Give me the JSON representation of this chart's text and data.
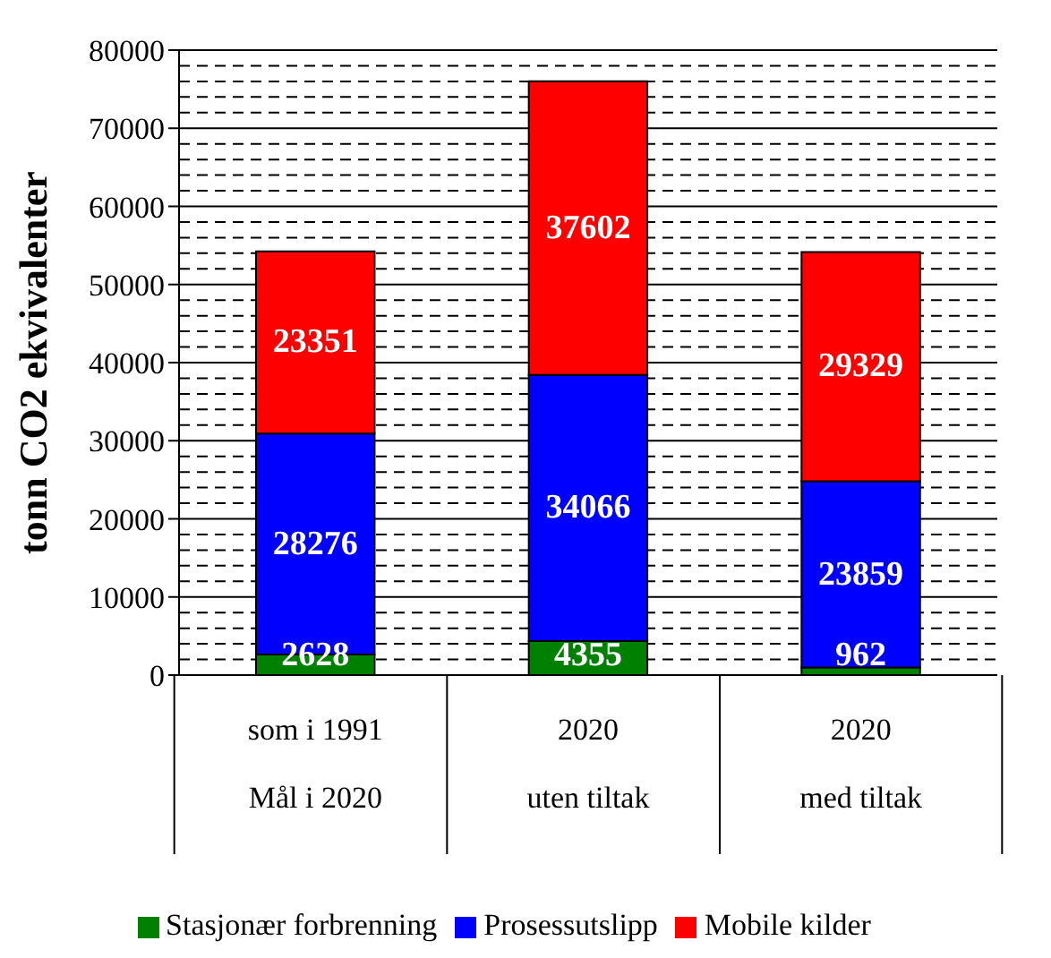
{
  "chart_data": {
    "type": "bar",
    "stacked": true,
    "ylabel": "tonn CO2 ekvivalenter",
    "categories": [
      "som i 1991\nMål i 2020",
      "2020\nuten tiltak",
      "2020\nmed tiltak"
    ],
    "series": [
      {
        "name": "Stasjonær forbrenning",
        "color": "#008000",
        "values": [
          2628,
          4355,
          962
        ]
      },
      {
        "name": "Prosessutslipp",
        "color": "#0000ff",
        "values": [
          28276,
          34066,
          23859
        ]
      },
      {
        "name": "Mobile kilder",
        "color": "#ff0000",
        "values": [
          23351,
          37602,
          29329
        ]
      }
    ],
    "ylim": [
      0,
      80000
    ],
    "yticks": [
      0,
      {
        "value": 2000,
        "label": null
      },
      {
        "value": 4000,
        "label": null
      },
      {
        "value": 6000,
        "label": null
      },
      {
        "value": 8000,
        "label": null
      },
      10000,
      {
        "value": 12000,
        "label": null
      },
      {
        "value": 14000,
        "label": null
      },
      {
        "value": 16000,
        "label": null
      },
      {
        "value": 18000,
        "label": null
      },
      20000,
      {
        "value": 22000,
        "label": null
      },
      {
        "value": 24000,
        "label": null
      },
      {
        "value": 26000,
        "label": null
      },
      {
        "value": 28000,
        "label": null
      },
      30000,
      {
        "value": 32000,
        "label": null
      },
      {
        "value": 34000,
        "label": null
      },
      {
        "value": 36000,
        "label": null
      },
      {
        "value": 38000,
        "label": null
      },
      40000,
      {
        "value": 42000,
        "label": null
      },
      {
        "value": 44000,
        "label": null
      },
      {
        "value": 46000,
        "label": null
      },
      {
        "value": 48000,
        "label": null
      },
      50000,
      {
        "value": 52000,
        "label": null
      },
      {
        "value": 54000,
        "label": null
      },
      {
        "value": 56000,
        "label": null
      },
      {
        "value": 58000,
        "label": null
      },
      60000,
      {
        "value": 62000,
        "label": null
      },
      {
        "value": 64000,
        "label": null
      },
      {
        "value": 66000,
        "label": null
      },
      {
        "value": 68000,
        "label": null
      },
      70000,
      {
        "value": 72000,
        "label": null
      },
      {
        "value": 74000,
        "label": null
      },
      {
        "value": 76000,
        "label": null
      },
      {
        "value": 78000,
        "label": null
      },
      80000
    ],
    "grid": "y",
    "legend": "bottom",
    "data_labels": true
  }
}
